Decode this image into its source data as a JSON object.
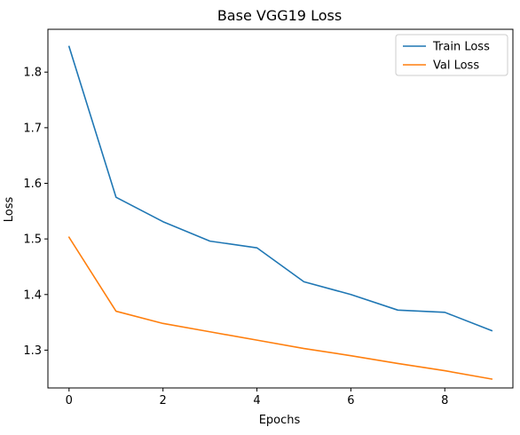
{
  "chart_data": {
    "type": "line",
    "title": "Base VGG19 Loss",
    "xlabel": "Epochs",
    "ylabel": "Loss",
    "x": [
      0,
      1,
      2,
      3,
      4,
      5,
      6,
      7,
      8,
      9
    ],
    "xlim": [
      -0.45,
      9.45
    ],
    "ylim": [
      1.232,
      1.877
    ],
    "xticks": [
      0,
      2,
      4,
      6,
      8
    ],
    "yticks": [
      1.3,
      1.4,
      1.5,
      1.6,
      1.7,
      1.8
    ],
    "grid": false,
    "legend_position": "top-right",
    "series": [
      {
        "name": "Train Loss",
        "color": "#1f77b4",
        "values": [
          1.846,
          1.575,
          1.531,
          1.496,
          1.484,
          1.423,
          1.4,
          1.372,
          1.368,
          1.335
        ]
      },
      {
        "name": "Val Loss",
        "color": "#ff7f0e",
        "values": [
          1.503,
          1.37,
          1.348,
          1.333,
          1.318,
          1.303,
          1.29,
          1.276,
          1.263,
          1.248
        ]
      }
    ]
  }
}
